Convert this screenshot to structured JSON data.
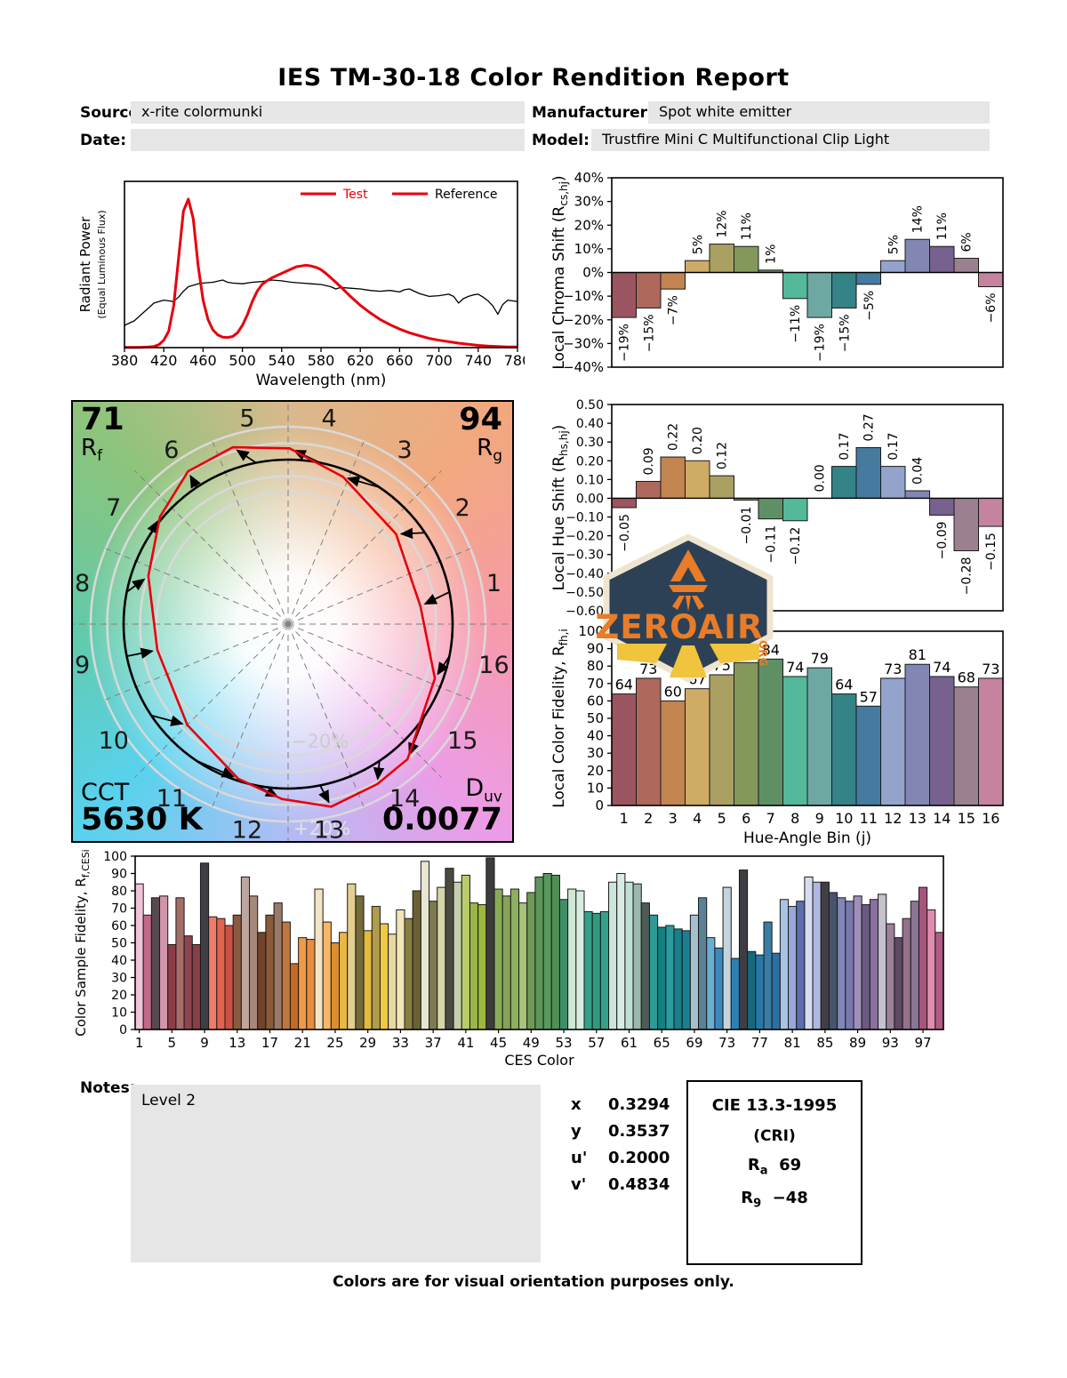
{
  "title": "IES TM-30-18 Color Rendition Report",
  "info": {
    "source_label": "Source:",
    "source_value": "x-rite colormunki",
    "manufacturer_label": "Manufacturer:",
    "manufacturer_value": "Spot white emitter",
    "date_label": "Date:",
    "date_value": "",
    "model_label": "Model:",
    "model_value": "Trustfire Mini C Multifunctional Clip Light"
  },
  "logo": {
    "text": "ZEROAIR",
    "suffix": "ORG"
  },
  "notes": {
    "label": "Notes:",
    "value": "Level 2"
  },
  "chromaticity": {
    "rows": [
      {
        "label": "x",
        "value": "0.3294"
      },
      {
        "label": "y",
        "value": "0.3537"
      },
      {
        "label": "u'",
        "value": "0.2000"
      },
      {
        "label": "v'",
        "value": "0.4834"
      }
    ]
  },
  "cie": {
    "title": "CIE 13.3-1995",
    "subtitle": "(CRI)",
    "ra_label": "R",
    "ra_sub": "a",
    "ra_value": "69",
    "r9_label": "R",
    "r9_sub": "9",
    "r9_value": "−48"
  },
  "footer": "Colors are for visual orientation purposes only.",
  "palette": {
    "test_red": "#e8000b",
    "reference_black": "#000000",
    "hue_bins": [
      "#9b5560",
      "#ae685c",
      "#c28450",
      "#d0ab66",
      "#a9a062",
      "#85985c",
      "#5f9065",
      "#54b89b",
      "#6fa8a2",
      "#348387",
      "#467a9e",
      "#93a3cc",
      "#8286b2",
      "#77618f",
      "#9c8090",
      "#c583a0"
    ]
  },
  "chart_data": [
    {
      "id": "spd",
      "type": "line",
      "xlabel": "Wavelength (nm)",
      "ylabel": "Radiant Power",
      "ylabel2": "(Equal Luminous Flux)",
      "xlim": [
        380,
        780
      ],
      "ylim": [
        0,
        1.12
      ],
      "xticks": [
        380,
        420,
        460,
        500,
        540,
        580,
        620,
        660,
        700,
        740,
        780
      ],
      "legend": [
        "Test",
        "Reference"
      ],
      "series": [
        {
          "name": "Test",
          "color": "#e8000b",
          "width": 3,
          "points": [
            [
              380,
              0.002
            ],
            [
              395,
              0.002
            ],
            [
              405,
              0.004
            ],
            [
              410,
              0.008
            ],
            [
              415,
              0.02
            ],
            [
              420,
              0.05
            ],
            [
              425,
              0.11
            ],
            [
              430,
              0.28
            ],
            [
              435,
              0.6
            ],
            [
              440,
              0.92
            ],
            [
              445,
              1.0
            ],
            [
              450,
              0.87
            ],
            [
              455,
              0.55
            ],
            [
              460,
              0.32
            ],
            [
              465,
              0.19
            ],
            [
              470,
              0.12
            ],
            [
              475,
              0.085
            ],
            [
              480,
              0.07
            ],
            [
              485,
              0.068
            ],
            [
              490,
              0.075
            ],
            [
              495,
              0.1
            ],
            [
              500,
              0.15
            ],
            [
              505,
              0.22
            ],
            [
              510,
              0.31
            ],
            [
              515,
              0.38
            ],
            [
              520,
              0.425
            ],
            [
              525,
              0.45
            ],
            [
              530,
              0.47
            ],
            [
              535,
              0.485
            ],
            [
              540,
              0.5
            ],
            [
              545,
              0.515
            ],
            [
              550,
              0.53
            ],
            [
              555,
              0.545
            ],
            [
              560,
              0.55
            ],
            [
              565,
              0.555
            ],
            [
              570,
              0.55
            ],
            [
              575,
              0.54
            ],
            [
              580,
              0.525
            ],
            [
              585,
              0.5
            ],
            [
              590,
              0.47
            ],
            [
              595,
              0.44
            ],
            [
              600,
              0.41
            ],
            [
              610,
              0.345
            ],
            [
              620,
              0.285
            ],
            [
              630,
              0.235
            ],
            [
              640,
              0.19
            ],
            [
              650,
              0.155
            ],
            [
              660,
              0.125
            ],
            [
              670,
              0.1
            ],
            [
              680,
              0.08
            ],
            [
              690,
              0.062
            ],
            [
              700,
              0.05
            ],
            [
              710,
              0.04
            ],
            [
              720,
              0.03
            ],
            [
              730,
              0.022
            ],
            [
              740,
              0.015
            ],
            [
              750,
              0.01
            ],
            [
              760,
              0.007
            ],
            [
              770,
              0.005
            ],
            [
              780,
              0.004
            ]
          ]
        },
        {
          "name": "Reference",
          "color": "#000000",
          "width": 1.3,
          "points": [
            [
              380,
              0.15
            ],
            [
              390,
              0.18
            ],
            [
              400,
              0.24
            ],
            [
              410,
              0.3
            ],
            [
              415,
              0.31
            ],
            [
              420,
              0.32
            ],
            [
              425,
              0.315
            ],
            [
              430,
              0.31
            ],
            [
              435,
              0.34
            ],
            [
              440,
              0.38
            ],
            [
              445,
              0.41
            ],
            [
              450,
              0.42
            ],
            [
              455,
              0.43
            ],
            [
              460,
              0.435
            ],
            [
              470,
              0.44
            ],
            [
              480,
              0.455
            ],
            [
              485,
              0.44
            ],
            [
              490,
              0.435
            ],
            [
              500,
              0.43
            ],
            [
              510,
              0.44
            ],
            [
              520,
              0.445
            ],
            [
              530,
              0.455
            ],
            [
              540,
              0.45
            ],
            [
              550,
              0.44
            ],
            [
              560,
              0.435
            ],
            [
              570,
              0.43
            ],
            [
              580,
              0.425
            ],
            [
              590,
              0.41
            ],
            [
              595,
              0.395
            ],
            [
              600,
              0.405
            ],
            [
              610,
              0.4
            ],
            [
              620,
              0.395
            ],
            [
              630,
              0.385
            ],
            [
              640,
              0.38
            ],
            [
              650,
              0.385
            ],
            [
              660,
              0.375
            ],
            [
              665,
              0.39
            ],
            [
              670,
              0.395
            ],
            [
              680,
              0.365
            ],
            [
              690,
              0.345
            ],
            [
              700,
              0.35
            ],
            [
              710,
              0.36
            ],
            [
              715,
              0.345
            ],
            [
              720,
              0.3
            ],
            [
              725,
              0.33
            ],
            [
              730,
              0.345
            ],
            [
              735,
              0.355
            ],
            [
              740,
              0.36
            ],
            [
              745,
              0.34
            ],
            [
              750,
              0.315
            ],
            [
              755,
              0.28
            ],
            [
              760,
              0.225
            ],
            [
              765,
              0.29
            ],
            [
              770,
              0.32
            ],
            [
              775,
              0.315
            ],
            [
              780,
              0.31
            ]
          ]
        }
      ]
    },
    {
      "id": "chroma_shift",
      "type": "bar",
      "ylabel_main": "Local Chroma Shift (R",
      "ylabel_sub": "cs,hj",
      "ylabel_close": ")",
      "ylim": [
        -40,
        40
      ],
      "ytick_step": 10,
      "unit": "%",
      "categories": [
        1,
        2,
        3,
        4,
        5,
        6,
        7,
        8,
        9,
        10,
        11,
        12,
        13,
        14,
        15,
        16
      ],
      "values": [
        -19,
        -15,
        -7,
        5,
        12,
        11,
        1,
        -11,
        -19,
        -15,
        -5,
        5,
        14,
        11,
        6,
        -6
      ]
    },
    {
      "id": "hue_shift",
      "type": "bar",
      "ylabel_main": "Local Hue Shift (R",
      "ylabel_sub": "hs,hj",
      "ylabel_close": ")",
      "ylim": [
        -0.6,
        0.5
      ],
      "ytick_step": 0.1,
      "categories": [
        1,
        2,
        3,
        4,
        5,
        6,
        7,
        8,
        9,
        10,
        11,
        12,
        13,
        14,
        15,
        16
      ],
      "values": [
        -0.05,
        0.09,
        0.22,
        0.2,
        0.12,
        -0.01,
        -0.11,
        -0.12,
        0.0,
        0.17,
        0.27,
        0.17,
        0.04,
        -0.09,
        -0.28,
        -0.15
      ]
    },
    {
      "id": "local_fidelity",
      "type": "bar",
      "ylabel_main": "Local Color Fidelity, R",
      "ylabel_sub": "fh,i",
      "ylabel_close": "",
      "xlabel": "Hue-Angle Bin (j)",
      "ylim": [
        0,
        100
      ],
      "ytick_step": 10,
      "categories": [
        1,
        2,
        3,
        4,
        5,
        6,
        7,
        8,
        9,
        10,
        11,
        12,
        13,
        14,
        15,
        16
      ],
      "values": [
        64,
        73,
        60,
        67,
        75,
        82,
        84,
        74,
        79,
        64,
        57,
        73,
        81,
        74,
        68,
        73
      ]
    },
    {
      "id": "ces",
      "type": "bar",
      "ylabel_main": "Color Sample Fidelity, R",
      "ylabel_sub": "f,CESi",
      "ylabel_close": "",
      "xlabel": "CES Color",
      "ylim": [
        0,
        100
      ],
      "ytick_step": 10,
      "xticks": [
        1,
        5,
        9,
        13,
        17,
        21,
        25,
        29,
        33,
        37,
        41,
        45,
        49,
        53,
        57,
        61,
        65,
        69,
        73,
        77,
        81,
        85,
        89,
        93,
        97
      ],
      "values": [
        84,
        66,
        76,
        77,
        49,
        76,
        54,
        49,
        96,
        65,
        64,
        60,
        66,
        88,
        77,
        56,
        66,
        73,
        62,
        38,
        53,
        52,
        81,
        62,
        50,
        56,
        84,
        77,
        57,
        71,
        61,
        55,
        69,
        64,
        80,
        97,
        74,
        82,
        93,
        85,
        89,
        73,
        72,
        99,
        81,
        77,
        81,
        73,
        79,
        88,
        90,
        89,
        75,
        81,
        80,
        68,
        67,
        68,
        85,
        90,
        85,
        84,
        73,
        66,
        59,
        60,
        58,
        57,
        66,
        76,
        53,
        47,
        82,
        41,
        92,
        45,
        43,
        62,
        44,
        75,
        71,
        74,
        88,
        85,
        85,
        79,
        76,
        74,
        77,
        72,
        75,
        78,
        61,
        53,
        64,
        74,
        82,
        69,
        56
      ],
      "colors": [
        "#f0c3d8",
        "#c3688c",
        "#564950",
        "#d294ac",
        "#8e3d46",
        "#a56d68",
        "#8e4550",
        "#8a3e48",
        "#3f3e44",
        "#f07b68",
        "#e0654f",
        "#cc5144",
        "#8a5a40",
        "#bda69e",
        "#a8887a",
        "#71432b",
        "#8a5a3a",
        "#9a7a66",
        "#c0763c",
        "#c56a24",
        "#f09a48",
        "#e88e3c",
        "#f4e4c4",
        "#f7b766",
        "#da8f2e",
        "#eab644",
        "#e3cf8e",
        "#746a3a",
        "#e3b93e",
        "#b09c4a",
        "#f0c944",
        "#e8d9a0",
        "#f2e6b8",
        "#8a7d42",
        "#6b6134",
        "#e8e6d0",
        "#7d7a50",
        "#d5d5a8",
        "#4a4a40",
        "#c5cfae",
        "#b8cc6a",
        "#9ab54a",
        "#9db83c",
        "#3c3c3c",
        "#8aab55",
        "#84a458",
        "#8cb060",
        "#a5c578",
        "#6f9a55",
        "#5c9659",
        "#58985e",
        "#4f8f55",
        "#3f8f68",
        "#cfe8d5",
        "#d8ede0",
        "#35a088",
        "#2f9a80",
        "#36a18a",
        "#cce5da",
        "#d8ece4",
        "#bedfd6",
        "#9ab8ac",
        "#4e5a56",
        "#2e9a96",
        "#14807f",
        "#2a9a9e",
        "#188088",
        "#1a7f93",
        "#a5c0cc",
        "#5a8296",
        "#6aaed4",
        "#3c88bc",
        "#c5d4dc",
        "#2e7fb4",
        "#3d3d42",
        "#15697f",
        "#2678a8",
        "#3a7ca4",
        "#2b6fa4",
        "#a8c4e4",
        "#9aa8d8",
        "#5c6eae",
        "#d8dcf0",
        "#b0b8e0",
        "#3f3f45",
        "#46536b",
        "#8087b8",
        "#7a79ae",
        "#a08fba",
        "#6b5a80",
        "#8a6fa0",
        "#c5c2ce",
        "#9a8398",
        "#5e4a62",
        "#96718e",
        "#8a7593",
        "#a8547c",
        "#e08cac",
        "#b05c84"
      ]
    },
    {
      "id": "cvg",
      "type": "polar-vector",
      "rf_value": "71",
      "rf_label": "R",
      "rf_sub": "f",
      "rg_value": "94",
      "rg_label": "R",
      "rg_sub": "g",
      "cct_label": "CCT",
      "cct_value": "5630 K",
      "duv_label": "D",
      "duv_sub": "uv",
      "duv_value": "0.0077",
      "ring_inner_label": "−20%",
      "ring_outer_label": "+20%",
      "bins": [
        1,
        2,
        3,
        4,
        5,
        6,
        7,
        8,
        9,
        10,
        11,
        12,
        13,
        14,
        15,
        16
      ],
      "chroma_shift_pct": [
        -19,
        -15,
        -7,
        5,
        12,
        11,
        1,
        -11,
        -19,
        -15,
        -5,
        5,
        14,
        11,
        6,
        -6
      ],
      "hue_shift": [
        -0.05,
        0.09,
        0.22,
        0.2,
        0.12,
        -0.01,
        -0.11,
        -0.12,
        0.0,
        0.17,
        0.27,
        0.17,
        0.04,
        -0.09,
        -0.28,
        -0.15
      ]
    }
  ]
}
